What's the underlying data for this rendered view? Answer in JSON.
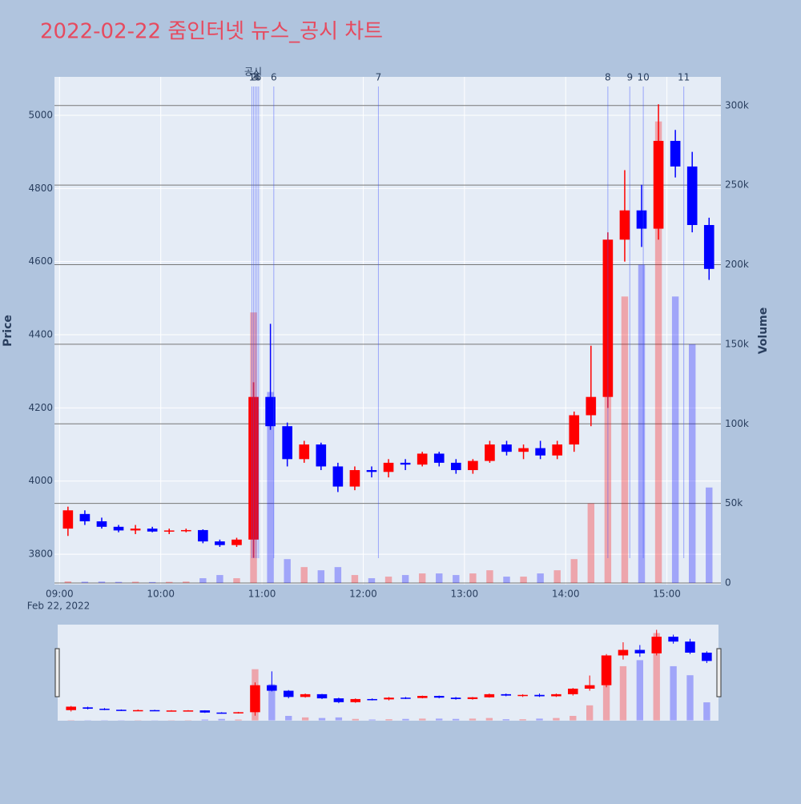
{
  "chart_data": {
    "type": "candlestick",
    "title": "2022-02-22 줌인터넷 뉴스_공시 차트",
    "ylabel": "Price",
    "y2label": "Volume",
    "date_label": "Feb 22, 2022",
    "x": [
      "09:00",
      "09:10",
      "09:20",
      "09:30",
      "09:40",
      "09:50",
      "10:00",
      "10:10",
      "10:20",
      "10:30",
      "10:40",
      "10:50",
      "11:00",
      "11:10",
      "11:20",
      "11:30",
      "11:40",
      "11:50",
      "12:00",
      "12:10",
      "12:20",
      "12:30",
      "12:40",
      "12:50",
      "13:00",
      "13:10",
      "13:20",
      "13:30",
      "13:40",
      "13:50",
      "14:00",
      "14:10",
      "14:20",
      "14:30",
      "14:40",
      "14:50",
      "15:00",
      "15:10",
      "15:20"
    ],
    "open": [
      3870,
      3910,
      3890,
      3875,
      3865,
      3870,
      3862,
      3865,
      3866,
      3835,
      3825,
      3840,
      4230,
      4150,
      4060,
      4100,
      4040,
      3985,
      4030,
      4025,
      4050,
      4045,
      4075,
      4050,
      4030,
      4055,
      4100,
      4080,
      4090,
      4070,
      4100,
      4180,
      4230,
      4660,
      4740,
      4690,
      4930,
      4860,
      4700
    ],
    "high": [
      3930,
      3920,
      3900,
      3880,
      3880,
      3875,
      3870,
      3870,
      3868,
      3840,
      3845,
      4270,
      4430,
      4160,
      4110,
      4105,
      4050,
      4040,
      4040,
      4060,
      4060,
      4080,
      4080,
      4060,
      4060,
      4110,
      4110,
      4100,
      4110,
      4110,
      4190,
      4370,
      4680,
      4850,
      4810,
      5030,
      4960,
      4900,
      4720
    ],
    "low": [
      3850,
      3880,
      3870,
      3860,
      3855,
      3860,
      3855,
      3860,
      3830,
      3820,
      3820,
      3790,
      4140,
      4040,
      4050,
      4030,
      3970,
      3975,
      4010,
      4010,
      4030,
      4040,
      4040,
      4020,
      4020,
      4050,
      4070,
      4060,
      4060,
      4060,
      4080,
      4150,
      4200,
      4600,
      4640,
      4660,
      4830,
      4680,
      4550
    ],
    "close": [
      3920,
      3890,
      3875,
      3865,
      3870,
      3862,
      3865,
      3866,
      3835,
      3825,
      3840,
      4230,
      4150,
      4060,
      4100,
      4040,
      3985,
      4030,
      4025,
      4050,
      4045,
      4075,
      4050,
      4030,
      4055,
      4100,
      4080,
      4090,
      4070,
      4100,
      4180,
      4230,
      4660,
      4740,
      4690,
      4930,
      4860,
      4700,
      4580
    ],
    "volume": [
      1000,
      800,
      900,
      700,
      800,
      600,
      700,
      900,
      3000,
      5000,
      3000,
      170000,
      120000,
      15000,
      10000,
      8000,
      10000,
      5000,
      3000,
      4000,
      5000,
      6000,
      6000,
      5000,
      6000,
      8000,
      4000,
      4000,
      6000,
      8000,
      15000,
      50000,
      150000,
      180000,
      200000,
      290000,
      180000,
      150000,
      60000
    ],
    "up_color": "#ff0000",
    "down_color": "#0000ff",
    "xlim": [
      "08:57",
      "15:32"
    ],
    "xticks": [
      "09:00",
      "10:00",
      "11:00",
      "12:00",
      "13:00",
      "14:00",
      "15:00"
    ],
    "ylim": [
      3717,
      5105
    ],
    "yticks": [
      3800,
      4000,
      4200,
      4400,
      4600,
      4800,
      5000
    ],
    "y2lim": [
      -1000,
      318000
    ],
    "y2ticks": [
      0,
      {
        "value": 50000,
        "label": "50k"
      },
      {
        "value": 100000,
        "label": "100k"
      },
      {
        "value": 150000,
        "label": "150k"
      },
      {
        "value": 200000,
        "label": "200k"
      },
      {
        "value": 250000,
        "label": "250k"
      },
      {
        "value": 300000,
        "label": "300k"
      }
    ],
    "marker_title": "공시",
    "annotations": [
      {
        "label": "1",
        "x": "10:54"
      },
      {
        "label": "2",
        "x": "10:55"
      },
      {
        "label": "3",
        "x": "10:56"
      },
      {
        "label": "4",
        "x": "10:57"
      },
      {
        "label": "5",
        "x": "10:58"
      },
      {
        "label": "6",
        "x": "11:07"
      },
      {
        "label": "7",
        "x": "12:09"
      },
      {
        "label": "8",
        "x": "14:25"
      },
      {
        "label": "9",
        "x": "14:38"
      },
      {
        "label": "10",
        "x": "14:46"
      },
      {
        "label": "11",
        "x": "15:10"
      }
    ],
    "grid": true,
    "rangeslider": true
  }
}
